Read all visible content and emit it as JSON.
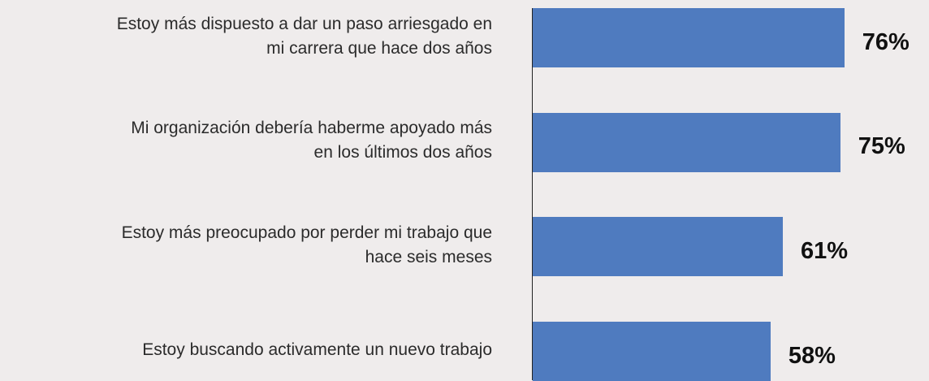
{
  "chart_data": {
    "type": "hbar",
    "categories": [
      "Estoy más dispuesto a dar un paso arriesgado en\nmi carrera que hace dos años",
      "Mi organización debería haberme apoyado más\nen los últimos dos años",
      "Estoy más preocupado por perder mi trabajo que\nhace seis meses",
      "Estoy buscando activamente un nuevo trabajo"
    ],
    "values": [
      76,
      75,
      61,
      58
    ],
    "value_labels": [
      "76%",
      "75%",
      "61%",
      "58%"
    ],
    "color": "#4f7bbf"
  }
}
